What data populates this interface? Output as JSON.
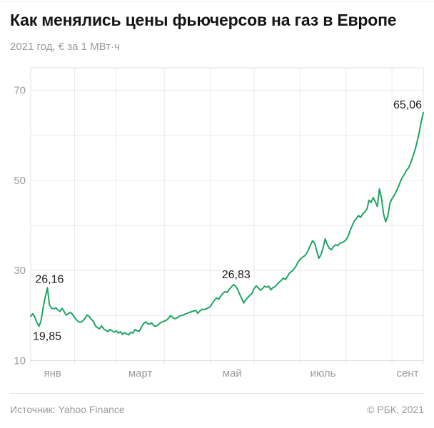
{
  "header": {
    "title": "Как менялись цены фьючерсов на газ в Европе",
    "subtitle": "2021 год, € за 1 МВт·ч"
  },
  "footer": {
    "source": "Источник: Yahoo Finance",
    "copyright": "© РБК, 2021"
  },
  "colors": {
    "background": "#ffffff",
    "line": "#1ea564",
    "grid": "#eaeaea",
    "frame": "#e0e0e0",
    "axis_text": "#9b9b9b",
    "annotation_text": "#1c1c1c",
    "title_text": "#151515",
    "divider": "#e6e6e6"
  },
  "chart_data": {
    "type": "line",
    "title": "Как менялись цены фьючерсов на газ в Европе",
    "subtitle": "2021 год, € за 1 МВт·ч",
    "unit": "€ за 1 МВт·ч",
    "grid": true,
    "legend": "none",
    "y_axis": {
      "min": 10,
      "max": 75,
      "tick_labels": [
        70,
        50,
        30,
        10
      ],
      "gridline_values": [
        10,
        20,
        30,
        40,
        50,
        60,
        70
      ]
    },
    "x_axis": {
      "tick_labels": [
        "янв",
        "март",
        "май",
        "июль",
        "сент"
      ],
      "month_start_indices": [
        0,
        21,
        41,
        64,
        86,
        107,
        129,
        151,
        173
      ],
      "label_between_boundaries": [
        [
          0,
          1
        ],
        [
          2,
          3
        ],
        [
          4,
          5
        ],
        [
          6,
          7
        ],
        [
          8,
          9
        ]
      ]
    },
    "series": [
      {
        "name": "price",
        "color": "#1ea564",
        "values": [
          19.85,
          20.4,
          19.6,
          18.4,
          17.6,
          18.9,
          21.9,
          24.2,
          26.16,
          22.4,
          21.6,
          21.5,
          21.7,
          21.3,
          20.9,
          21.6,
          20.9,
          20.1,
          20.4,
          20.7,
          20.3,
          19.6,
          19.0,
          18.6,
          18.5,
          18.8,
          19.4,
          20.1,
          19.8,
          19.2,
          18.7,
          17.7,
          17.3,
          17.1,
          17.7,
          17.0,
          16.75,
          16.4,
          16.9,
          16.6,
          16.3,
          16.6,
          16.1,
          16.4,
          15.8,
          16.2,
          15.9,
          15.7,
          16.3,
          16.1,
          16.9,
          16.6,
          16.5,
          17.4,
          18.2,
          18.6,
          18.2,
          18.1,
          18.35,
          17.7,
          17.6,
          17.95,
          18.35,
          18.6,
          18.75,
          19.0,
          19.4,
          20.0,
          19.55,
          19.3,
          19.45,
          19.8,
          20.0,
          20.1,
          20.35,
          20.5,
          20.7,
          20.85,
          21.0,
          21.15,
          20.5,
          21.0,
          21.4,
          21.3,
          21.5,
          21.7,
          22.0,
          22.7,
          23.4,
          23.9,
          23.6,
          24.3,
          24.9,
          25.3,
          25.1,
          25.8,
          26.3,
          26.83,
          26.6,
          25.9,
          24.8,
          23.8,
          22.8,
          23.5,
          24.0,
          24.5,
          24.9,
          26.0,
          26.6,
          26.1,
          25.6,
          26.0,
          26.5,
          26.3,
          26.5,
          25.7,
          26.2,
          26.4,
          26.9,
          27.4,
          27.8,
          28.3,
          28.0,
          28.7,
          29.5,
          29.8,
          30.3,
          30.9,
          31.9,
          32.5,
          32.9,
          33.2,
          33.7,
          34.6,
          35.7,
          36.6,
          36.0,
          34.3,
          32.7,
          33.5,
          35.0,
          37.0,
          35.8,
          34.9,
          34.6,
          35.3,
          35.7,
          35.5,
          36.0,
          36.2,
          36.4,
          36.8,
          37.6,
          38.9,
          40.0,
          41.0,
          41.6,
          42.2,
          41.8,
          42.6,
          43.0,
          43.6,
          45.6,
          45.1,
          46.2,
          45.3,
          44.2,
          48.1,
          46.0,
          42.5,
          40.8,
          42.1,
          44.9,
          45.9,
          46.6,
          47.5,
          48.5,
          49.7,
          50.7,
          51.4,
          52.3,
          52.8,
          53.9,
          55.3,
          56.7,
          58.5,
          60.5,
          63.0,
          65.06
        ]
      }
    ],
    "annotations": [
      {
        "label": "19,85",
        "index": 0,
        "value": 19.85
      },
      {
        "label": "26,16",
        "index": 8,
        "value": 26.16
      },
      {
        "label": "26,83",
        "index": 97,
        "value": 26.83
      },
      {
        "label": "65,06",
        "index": 188,
        "value": 65.06
      }
    ]
  }
}
